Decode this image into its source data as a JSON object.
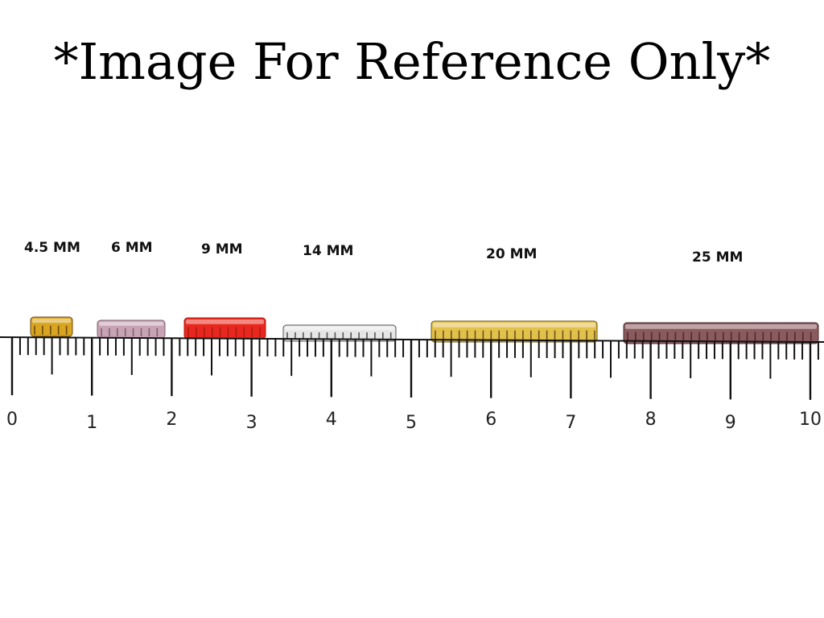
{
  "banner": {
    "text": "*Image For Reference Only*"
  },
  "beads": [
    {
      "label": "4.5 MM",
      "color": "#d9a520",
      "stripe": "#6b4c10"
    },
    {
      "label": "6 MM",
      "color": "#c7a3b3",
      "stripe": "#7d6270"
    },
    {
      "label": "9 MM",
      "color": "#e8281e",
      "stripe": "#b01a12"
    },
    {
      "label": "14 MM",
      "color": "#e6e6e6",
      "stripe": "#555555"
    },
    {
      "label": "20 MM",
      "color": "#e2c04c",
      "stripe": "#6b5518"
    },
    {
      "label": "25 MM",
      "color": "#8a5a5e",
      "stripe": "#4a2c30"
    }
  ],
  "ruler": {
    "numbers": [
      "0",
      "1",
      "2",
      "3",
      "4",
      "5",
      "6",
      "7",
      "8",
      "9",
      "10"
    ]
  }
}
